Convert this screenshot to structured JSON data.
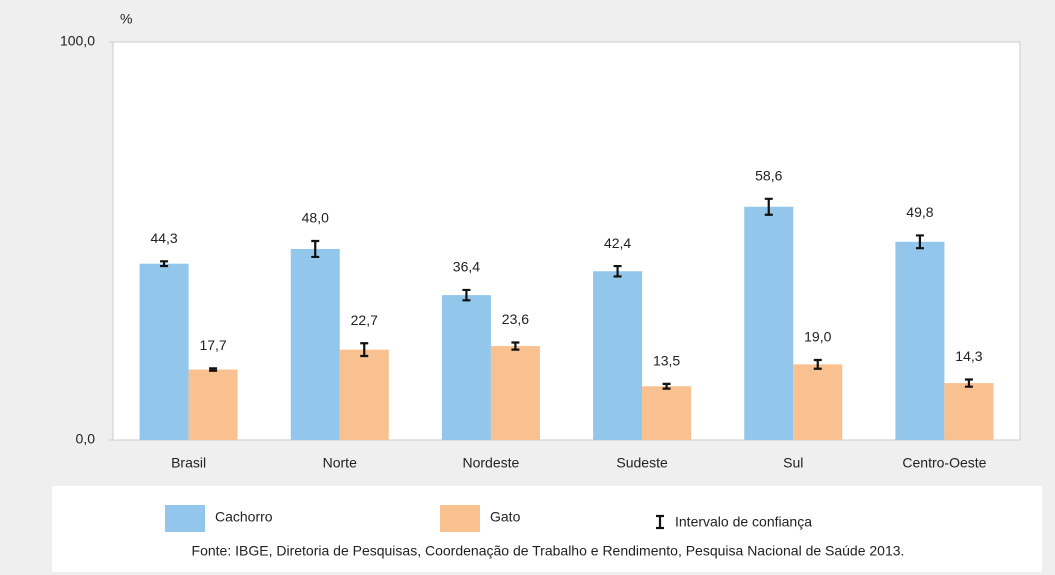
{
  "chart_data": {
    "type": "bar",
    "ylabel": "%",
    "categories": [
      "Brasil",
      "Norte",
      "Nordeste",
      "Sudeste",
      "Sul",
      "Centro-Oeste"
    ],
    "series": [
      {
        "name": "Cachorro",
        "color": "#92c6ea",
        "values": [
          44.3,
          48.0,
          36.4,
          42.4,
          58.6,
          49.8
        ],
        "value_labels": [
          "44,3",
          "48,0",
          "36,4",
          "42,4",
          "58,6",
          "49,8"
        ],
        "errors": [
          0.6,
          2.0,
          1.3,
          1.3,
          2.0,
          1.6
        ]
      },
      {
        "name": "Gato",
        "color": "#f9c18f",
        "values": [
          17.7,
          22.7,
          23.6,
          13.5,
          19.0,
          14.3
        ],
        "value_labels": [
          "17,7",
          "22,7",
          "23,6",
          "13,5",
          "19,0",
          "14,3"
        ],
        "errors": [
          0.3,
          1.6,
          0.9,
          0.6,
          1.1,
          0.9
        ]
      }
    ],
    "error_bar_label": "Intervalo de confiança",
    "ylim": [
      0,
      100
    ],
    "yticks": [
      {
        "value": 0,
        "label": "0,0"
      },
      {
        "value": 100,
        "label": "100,0"
      }
    ],
    "source": "Fonte: IBGE, Diretoria de Pesquisas, Coordenação de Trabalho e Rendimento, Pesquisa Nacional de Saúde 2013."
  }
}
